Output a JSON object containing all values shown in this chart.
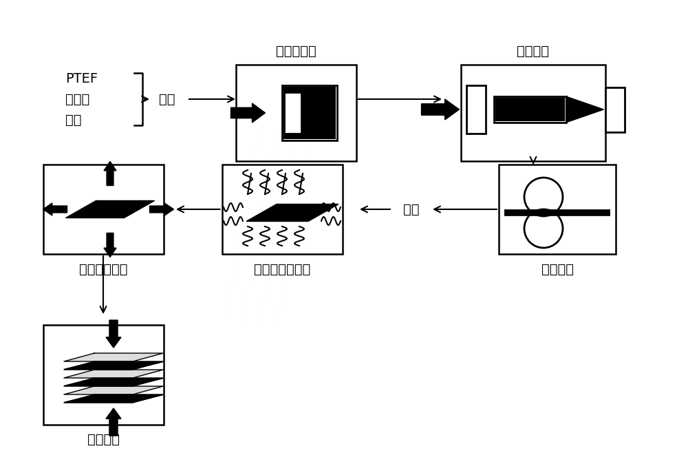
{
  "bg_color": "#ffffff",
  "black": "#000000",
  "labels": {
    "ptef_line1": "PTEF",
    "ptef_line2": "改性物",
    "ptef_line3": "助剂",
    "mix": "混匀",
    "prepress": "预压制成型",
    "extrude": "挤出棒料",
    "calender": "压延成膜",
    "dry": "干燥",
    "plasma": "表面等离子处理",
    "stretch": "拉伸及热处理",
    "laminate": "层压复合"
  },
  "font_size": 14
}
